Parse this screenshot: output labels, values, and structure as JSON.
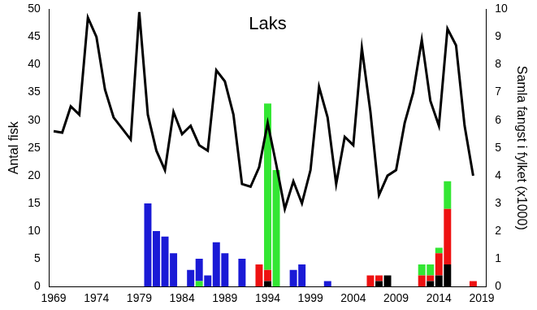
{
  "chart_data": {
    "type": "bar",
    "title": "Laks",
    "y_label": "Antal fisk",
    "y2_label": "Samla fangst i fylket (x1000)",
    "categories": [
      "1969",
      null,
      null,
      null,
      null,
      "1974",
      null,
      null,
      null,
      null,
      "1979",
      null,
      null,
      null,
      null,
      "1984",
      null,
      null,
      null,
      null,
      "1989",
      null,
      null,
      null,
      null,
      "1994",
      null,
      null,
      null,
      null,
      "1999",
      null,
      null,
      null,
      null,
      "2004",
      null,
      null,
      null,
      null,
      "2009",
      null,
      null,
      null,
      null,
      "2014",
      null,
      null,
      null,
      null,
      "2019"
    ],
    "series": [
      {
        "color": "#000000",
        "values": [
          null,
          null,
          null,
          null,
          null,
          null,
          null,
          null,
          null,
          null,
          null,
          null,
          null,
          null,
          null,
          null,
          null,
          null,
          null,
          null,
          null,
          null,
          null,
          null,
          null,
          1,
          null,
          null,
          null,
          null,
          null,
          null,
          null,
          null,
          null,
          null,
          null,
          null,
          1,
          2,
          null,
          null,
          null,
          null,
          1,
          2,
          4,
          null,
          null,
          null,
          null
        ]
      },
      {
        "color": "#ee1111",
        "values": [
          null,
          null,
          null,
          null,
          null,
          null,
          null,
          null,
          null,
          null,
          null,
          null,
          null,
          null,
          null,
          null,
          null,
          null,
          null,
          null,
          null,
          null,
          null,
          null,
          4,
          2,
          null,
          null,
          null,
          null,
          null,
          null,
          null,
          null,
          null,
          null,
          null,
          2,
          1,
          null,
          null,
          null,
          null,
          2,
          1,
          4,
          10,
          null,
          null,
          1,
          null
        ]
      },
      {
        "color": "#33e633",
        "values": [
          null,
          null,
          null,
          null,
          null,
          null,
          null,
          null,
          null,
          null,
          null,
          null,
          null,
          null,
          null,
          null,
          null,
          1,
          null,
          null,
          null,
          null,
          null,
          null,
          null,
          30,
          21,
          null,
          null,
          null,
          null,
          null,
          null,
          null,
          null,
          null,
          null,
          null,
          null,
          null,
          null,
          null,
          null,
          2,
          2,
          1,
          5,
          null,
          null,
          null,
          null
        ]
      },
      {
        "color": "#1a1ad6",
        "values": [
          null,
          null,
          null,
          null,
          null,
          null,
          null,
          null,
          null,
          null,
          null,
          15,
          10,
          9,
          6,
          null,
          3,
          4,
          2,
          8,
          6,
          null,
          5,
          null,
          null,
          null,
          null,
          null,
          3,
          4,
          null,
          null,
          1,
          null,
          null,
          null,
          null,
          null,
          null,
          null,
          null,
          null,
          null,
          null,
          null,
          null,
          null,
          null,
          null,
          null,
          null
        ]
      },
      {
        "type": "line",
        "axis": "y2",
        "color": "#000000",
        "values": [
          5.6,
          5.55,
          6.5,
          6.2,
          9.7,
          9.0,
          7.1,
          6.1,
          5.7,
          5.3,
          9.9,
          6.2,
          4.9,
          4.2,
          6.3,
          5.5,
          5.8,
          5.1,
          4.9,
          7.8,
          7.4,
          6.2,
          3.7,
          3.6,
          4.3,
          5.9,
          4.4,
          2.8,
          3.8,
          3.0,
          4.2,
          7.2,
          6.1,
          3.7,
          5.4,
          5.1,
          8.6,
          6.3,
          3.3,
          4.0,
          4.2,
          5.9,
          7.0,
          8.9,
          6.7,
          5.8,
          9.3,
          8.7,
          5.8,
          4.0,
          null
        ]
      }
    ],
    "ylim": [
      0,
      50
    ],
    "yticks": [
      0,
      5,
      10,
      15,
      20,
      25,
      30,
      35,
      40,
      45,
      50
    ],
    "y2lim": [
      0,
      10
    ],
    "y2ticks": [
      0,
      1,
      2,
      3,
      4,
      5,
      6,
      7,
      8,
      9,
      10
    ],
    "stacked": true,
    "grid": false
  }
}
